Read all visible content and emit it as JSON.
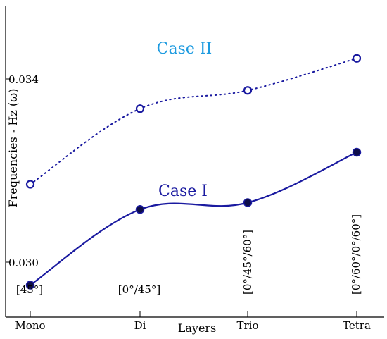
{
  "chart_data": {
    "type": "line",
    "categories": [
      "Mono",
      "Di",
      "Trio",
      "Tetra"
    ],
    "xlabel": "Layers",
    "ylabel": "Frequencies - Hz (ω)",
    "yticks": [
      "0.030",
      "0.034"
    ],
    "ylim": [
      0.0288,
      0.0356
    ],
    "series": [
      {
        "name": "Case I",
        "values": [
          0.0295,
          0.03115,
          0.0313,
          0.0324
        ],
        "color": "#1a1aa0",
        "line_style": "solid",
        "marker": "filled-circle"
      },
      {
        "name": "Case II",
        "values": [
          0.0317,
          0.03335,
          0.03375,
          0.03445
        ],
        "color": "#1a1aa0",
        "line_style": "dotted",
        "marker": "open-circle"
      }
    ],
    "series_label_colors": {
      "Case I": "#1a1aa0",
      "Case II": "#1e9be0"
    },
    "annotations": [
      "[45°]",
      "[0°/45°]",
      "[0°/45°/60°]",
      "[0°/60°/0°/60°]"
    ],
    "grid": false,
    "legend": "none"
  }
}
